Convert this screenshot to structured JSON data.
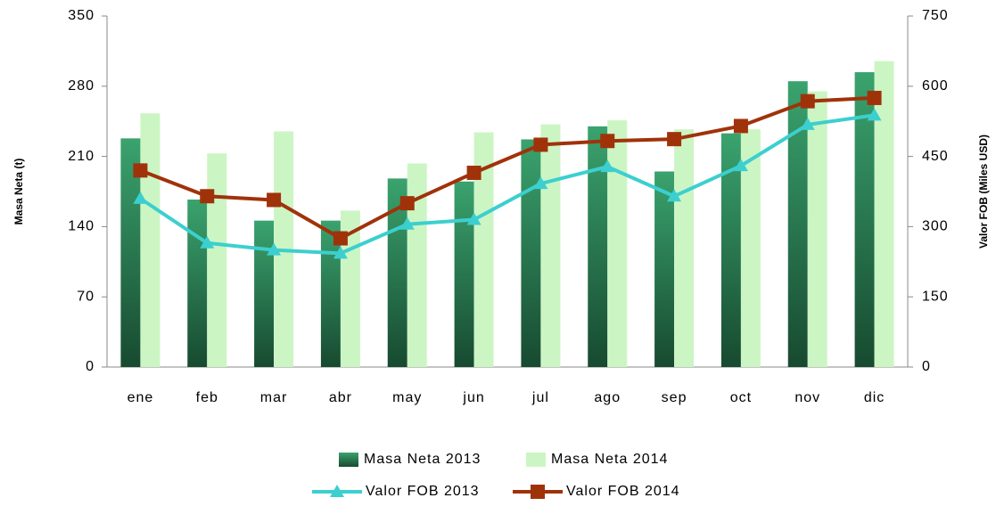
{
  "chart_data": {
    "type": "bar_line_combo",
    "categories": [
      "ene",
      "feb",
      "mar",
      "abr",
      "may",
      "jun",
      "jul",
      "ago",
      "sep",
      "oct",
      "nov",
      "dic"
    ],
    "ylabel": "Masa Neta (t)",
    "y2label": "Valor FOB (Miles USD)",
    "ylim": [
      0,
      350
    ],
    "yticks": [
      0,
      70,
      140,
      210,
      280,
      350
    ],
    "y2lim": [
      0,
      750
    ],
    "y2ticks": [
      0,
      150,
      300,
      450,
      600,
      750
    ],
    "series": [
      {
        "name": "Masa Neta 2013",
        "kind": "bar",
        "color": "#2e8b57",
        "values": [
          228,
          167,
          146,
          146,
          188,
          185,
          227,
          240,
          195,
          233,
          285,
          294
        ]
      },
      {
        "name": "Masa Neta 2014",
        "kind": "bar",
        "color": "#ccf5c4",
        "values": [
          253,
          213,
          235,
          156,
          203,
          234,
          242,
          246,
          237,
          237,
          275,
          305
        ]
      },
      {
        "name": "Valor FOB 2013",
        "kind": "line",
        "axis": "y2",
        "marker": "triangle",
        "color": "#3ccfcf",
        "values": [
          360,
          265,
          250,
          243,
          305,
          315,
          392,
          428,
          365,
          430,
          518,
          538
        ]
      },
      {
        "name": "Valor FOB 2014",
        "kind": "line",
        "axis": "y2",
        "marker": "square",
        "color": "#a0320a",
        "values": [
          420,
          365,
          357,
          275,
          350,
          415,
          475,
          483,
          487,
          515,
          568,
          575
        ]
      }
    ]
  }
}
